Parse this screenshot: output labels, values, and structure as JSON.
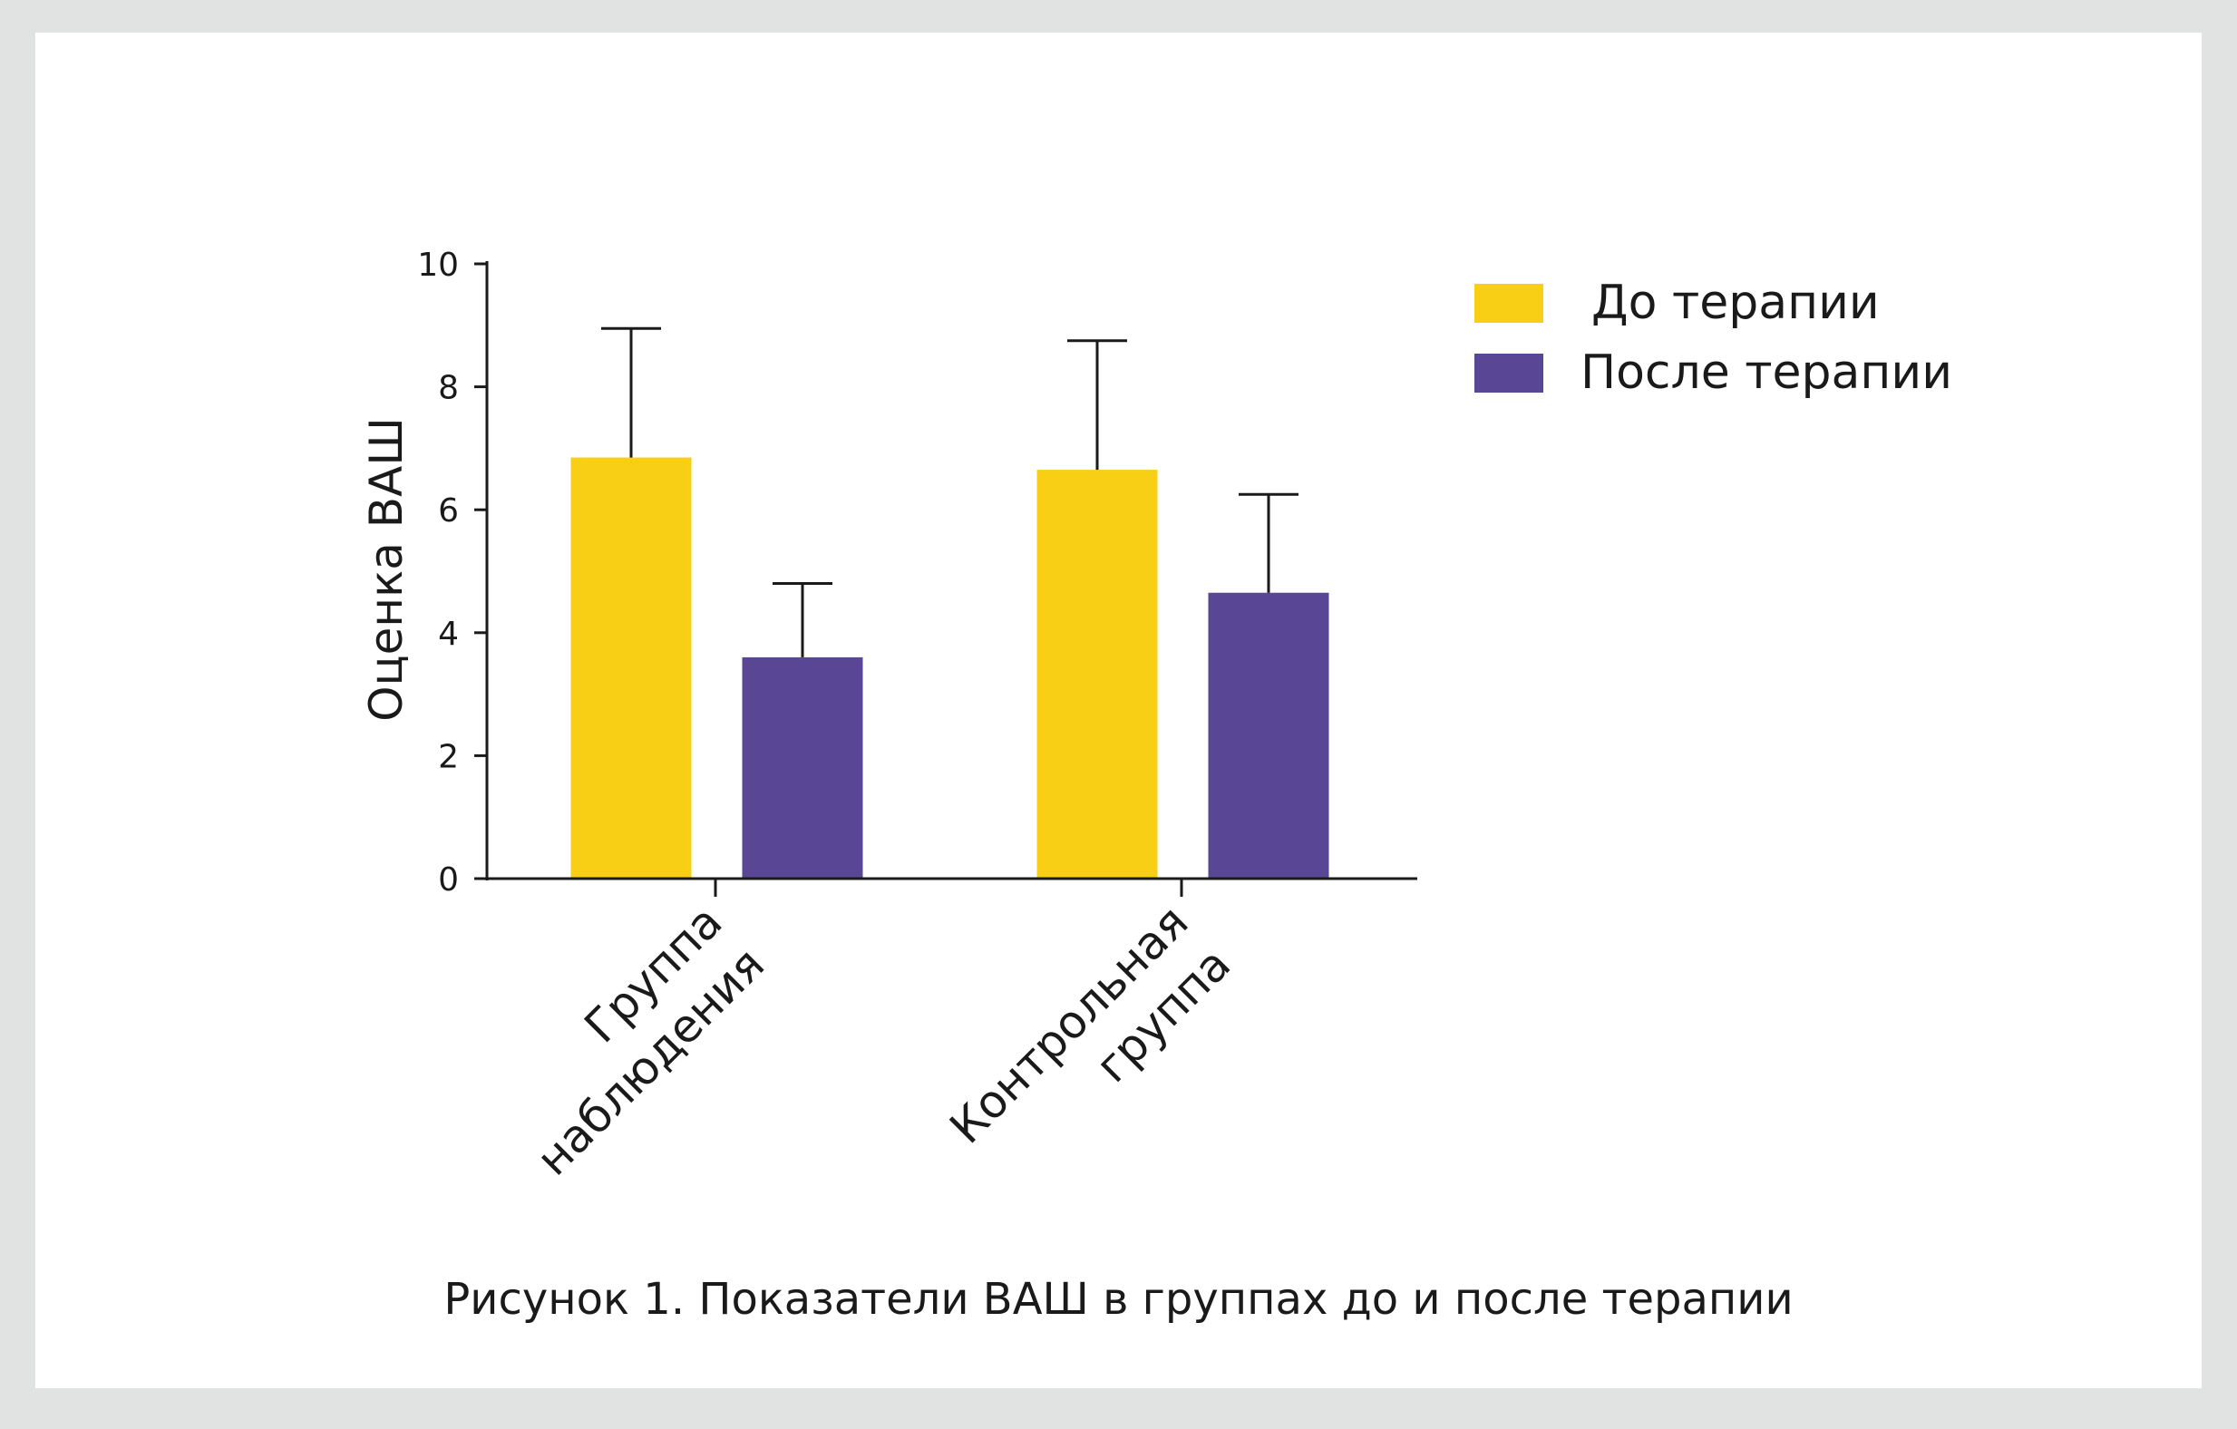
{
  "chart_data": {
    "type": "bar",
    "categories": [
      "Группа наблюдения",
      "Контрольная группа"
    ],
    "category_lines": [
      [
        "Группа",
        "наблюдения"
      ],
      [
        "Контрольная",
        "группа"
      ]
    ],
    "series": [
      {
        "name": "До терапии",
        "values": [
          6.85,
          6.65
        ],
        "errors": [
          2.1,
          2.1
        ]
      },
      {
        "name": "После терапии",
        "values": [
          3.6,
          4.65
        ],
        "errors": [
          1.2,
          1.6
        ]
      }
    ],
    "ylabel": "Оценка ВАШ",
    "xlabel": "",
    "ylim": [
      0,
      10
    ],
    "yticks": [
      0,
      2,
      4,
      6,
      8,
      10
    ],
    "legend_position": "top-right"
  },
  "colors": {
    "series": [
      "#f8cf14",
      "#594796"
    ],
    "axis": "#1a1a1a"
  },
  "caption": "Рисунок 1. Показатели ВАШ в группах до и после терапии"
}
